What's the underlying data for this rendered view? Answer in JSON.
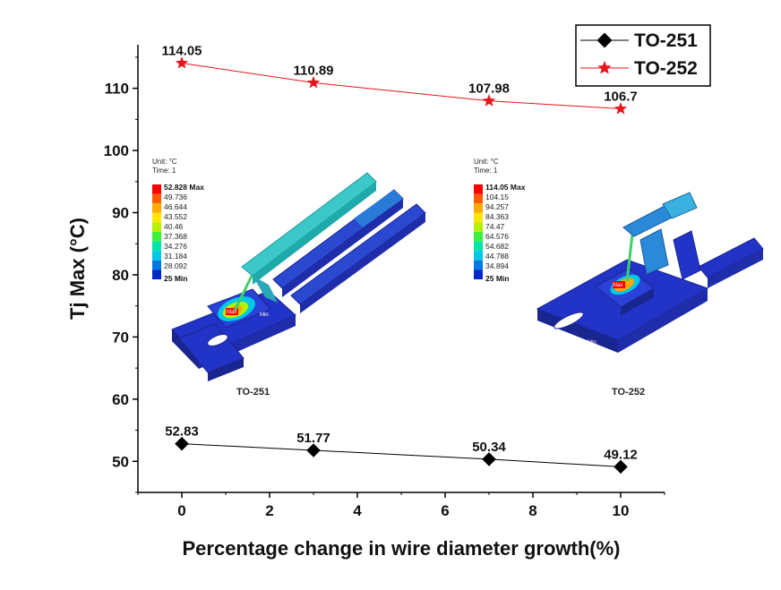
{
  "chart_data": {
    "type": "line",
    "xlabel": "Percentage change in wire diameter growth(%)",
    "ylabel": "Tj Max (°C)",
    "xlim": [
      -1,
      11
    ],
    "ylim": [
      45,
      117
    ],
    "xticks": [
      0,
      2,
      4,
      6,
      8,
      10
    ],
    "yticks": [
      50,
      60,
      70,
      80,
      90,
      100,
      110
    ],
    "legend_position": "top-right",
    "grid": false,
    "series": [
      {
        "name": "TO-251",
        "color": "#000000",
        "marker": "diamond",
        "x": [
          0,
          3,
          7,
          10
        ],
        "y": [
          52.83,
          51.77,
          50.34,
          49.12
        ],
        "labels": [
          "52.83",
          "51.77",
          "50.34",
          "49.12"
        ]
      },
      {
        "name": "TO-252",
        "color": "#e8141c",
        "marker": "star",
        "x": [
          0,
          3,
          7,
          10
        ],
        "y": [
          114.05,
          110.89,
          107.98,
          106.7
        ],
        "labels": [
          "114.05",
          "110.89",
          "107.98",
          "106.7"
        ]
      }
    ]
  },
  "insets": [
    {
      "package_label": "TO-251",
      "unit": "Unit: °C",
      "time": "Time: 1",
      "max_label": "52.828 Max",
      "levels": [
        "49.736",
        "46.644",
        "43.552",
        "40.46",
        "37.368",
        "34.276",
        "31.184",
        "28.092"
      ],
      "min_label": "25 Min",
      "max_tag": "Max",
      "min_tag": "Min"
    },
    {
      "package_label": "TO-252",
      "unit": "Unit: °C",
      "time": "Time: 1",
      "max_label": "114.05 Max",
      "levels": [
        "104.15",
        "94.257",
        "84.363",
        "74.47",
        "64.576",
        "54.682",
        "44.788",
        "34.894"
      ],
      "min_label": "25 Min",
      "max_tag": "Max",
      "min_tag": "Min"
    }
  ],
  "colorbar_colors": [
    "#ff0000",
    "#ff5a00",
    "#ffaa00",
    "#ffe600",
    "#b4f000",
    "#3cf03c",
    "#00e6aa",
    "#00c8e6",
    "#0078e6",
    "#0028c8"
  ]
}
